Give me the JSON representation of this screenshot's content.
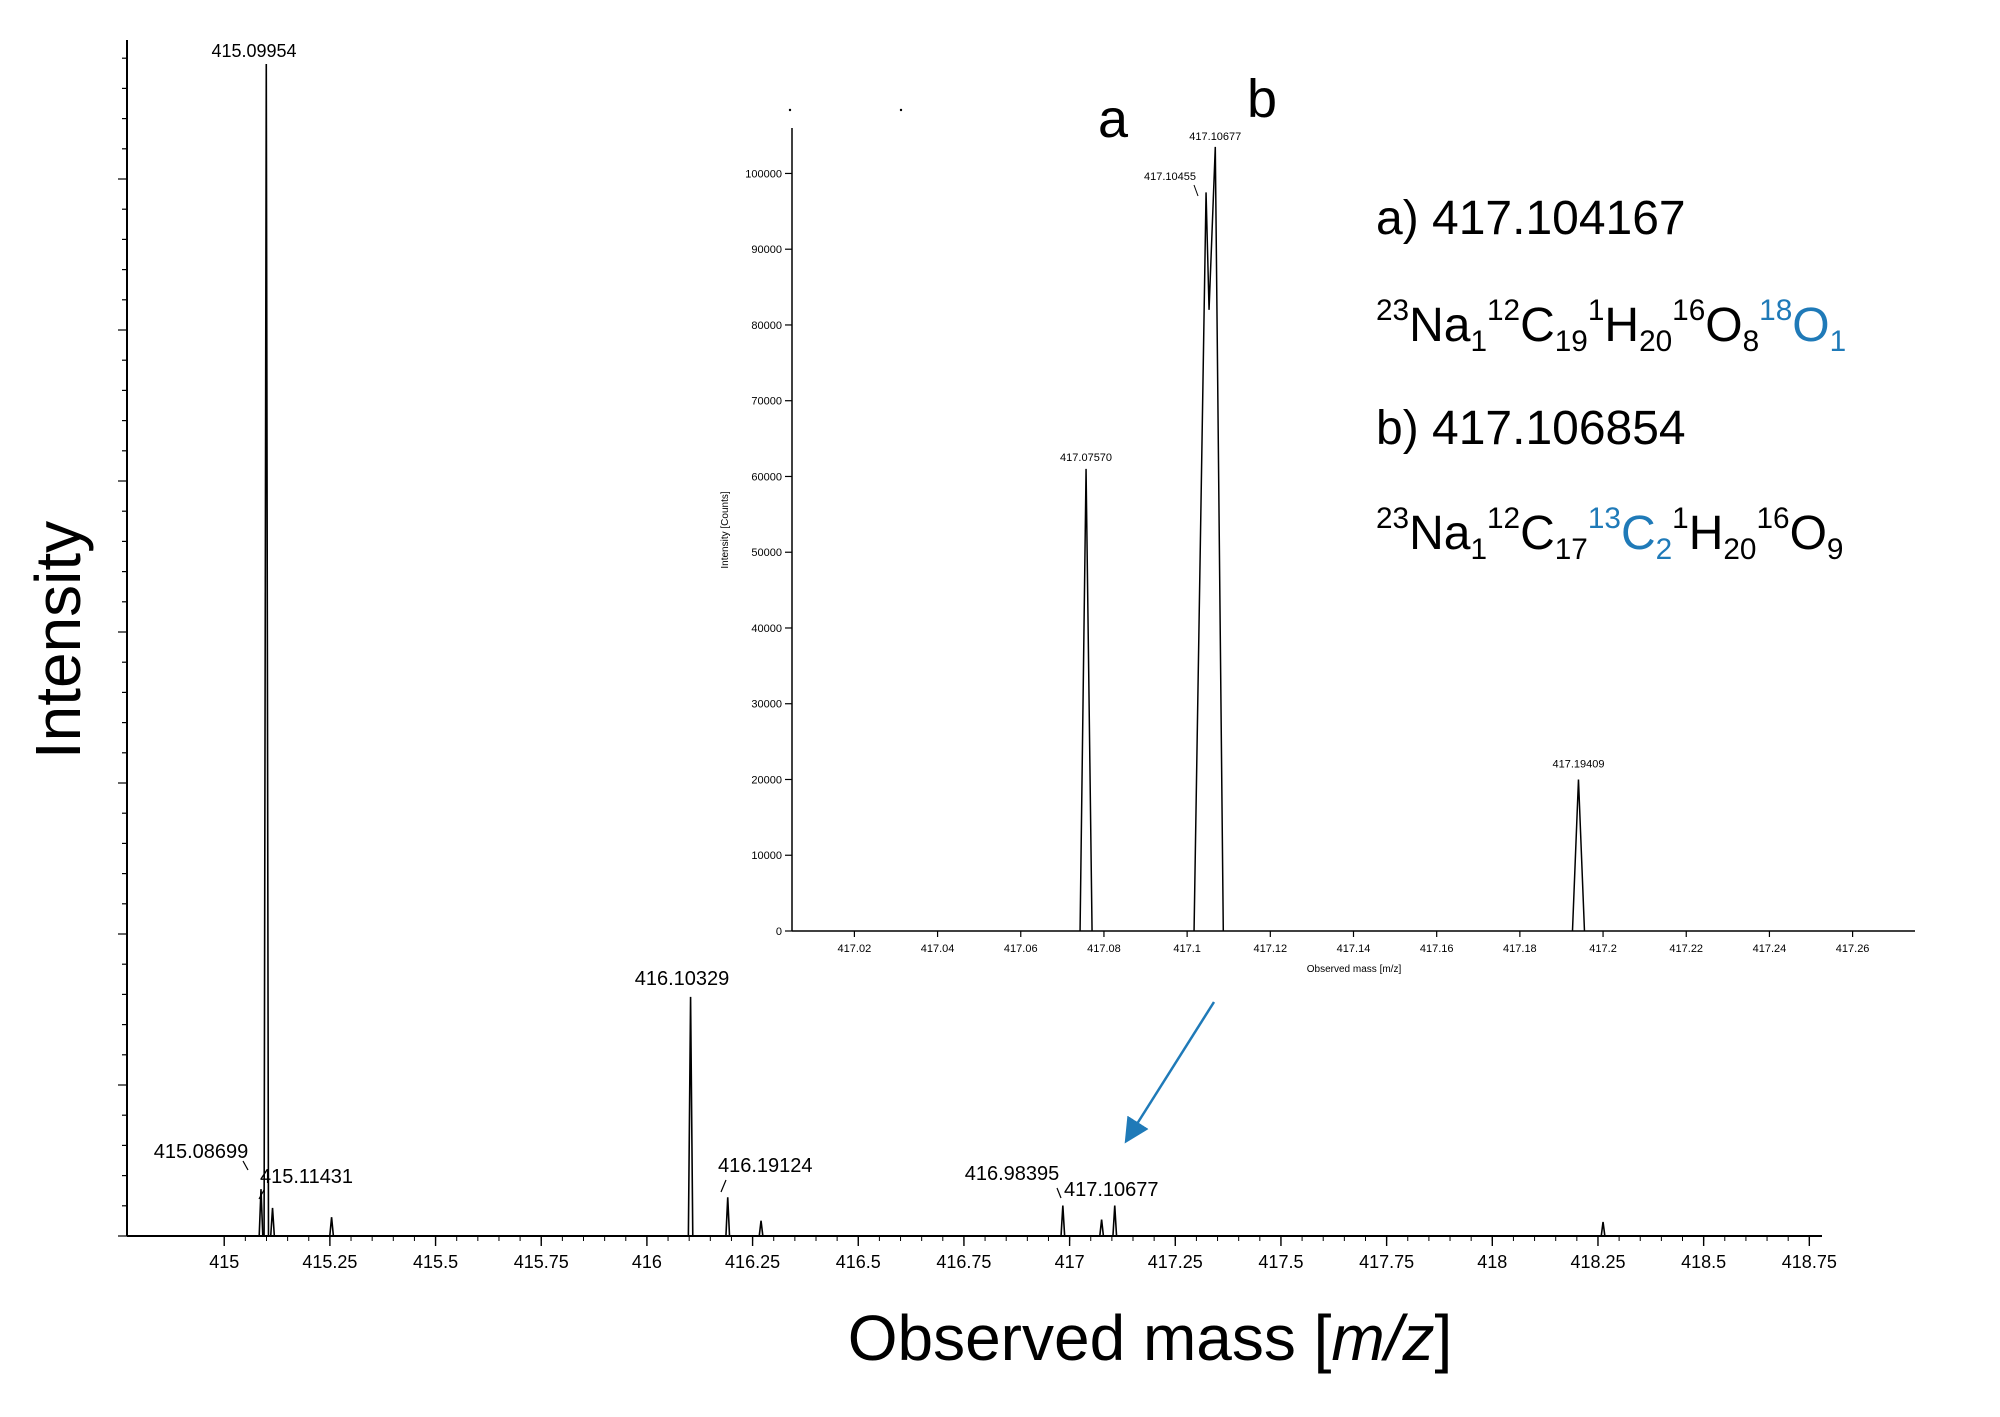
{
  "chart_data": [
    {
      "type": "line",
      "title": "",
      "xlabel_prefix": "Observed mass [",
      "xlabel_unit": "m/z",
      "xlabel_suffix": "]",
      "ylabel": "Intensity",
      "xlim": [
        414.77,
        418.78
      ],
      "ylim": [
        0,
        100
      ],
      "xticks": [
        "415",
        "415.25",
        "415.5",
        "415.75",
        "416",
        "416.25",
        "416.5",
        "416.75",
        "417",
        "417.25",
        "417.5",
        "417.75",
        "418",
        "418.25",
        "418.5",
        "418.75"
      ],
      "peaks": [
        {
          "x": 415.087,
          "y": 4.0,
          "label": "415.08699"
        },
        {
          "x": 415.0995,
          "y": 100.0,
          "label": "415.09954"
        },
        {
          "x": 415.1143,
          "y": 2.4,
          "label": "415.11431"
        },
        {
          "x": 415.254,
          "y": 1.6,
          "label": ""
        },
        {
          "x": 416.1033,
          "y": 20.4,
          "label": "416.10329"
        },
        {
          "x": 416.1912,
          "y": 3.3,
          "label": "416.19124"
        },
        {
          "x": 416.27,
          "y": 1.3,
          "label": ""
        },
        {
          "x": 416.984,
          "y": 2.6,
          "label": "416.98395"
        },
        {
          "x": 417.0757,
          "y": 1.4,
          "label": ""
        },
        {
          "x": 417.1068,
          "y": 2.6,
          "label": "417.10677"
        },
        {
          "x": 418.262,
          "y": 1.2,
          "label": ""
        }
      ]
    },
    {
      "type": "line",
      "title": "",
      "xlabel": "Observed mass [m/z]",
      "ylabel": "Intensity [Counts]",
      "xlim": [
        417.005,
        417.275
      ],
      "ylim": [
        0,
        106000
      ],
      "xticks": [
        "417.02",
        "417.04",
        "417.06",
        "417.08",
        "417.1",
        "417.12",
        "417.14",
        "417.16",
        "417.18",
        "417.2",
        "417.22",
        "417.24",
        "417.26"
      ],
      "yticks": [
        "0",
        "10000",
        "20000",
        "30000",
        "40000",
        "50000",
        "60000",
        "70000",
        "80000",
        "90000",
        "100000"
      ],
      "peaks": [
        {
          "x": 417.0757,
          "y": 61000,
          "label": "417.07570"
        },
        {
          "x": 417.10455,
          "y": 97500,
          "label": "417.10455"
        },
        {
          "x": 417.10677,
          "y": 103500,
          "label": "417.10677"
        },
        {
          "x": 417.19409,
          "y": 20000,
          "label": "417.19409"
        }
      ]
    }
  ],
  "annotations": {
    "peak_a_letter": "a",
    "peak_b_letter": "b",
    "a_mass": "a) 417.104167",
    "b_mass": "b) 417.106854",
    "a_formula": [
      {
        "mass": "23",
        "el": "Na",
        "n": "1",
        "highlight": false
      },
      {
        "mass": "12",
        "el": "C",
        "n": "19",
        "highlight": false
      },
      {
        "mass": "1",
        "el": "H",
        "n": "20",
        "highlight": false
      },
      {
        "mass": "16",
        "el": "O",
        "n": "8",
        "highlight": false
      },
      {
        "mass": "18",
        "el": "O",
        "n": "1",
        "highlight": true
      }
    ],
    "b_formula": [
      {
        "mass": "23",
        "el": "Na",
        "n": "1",
        "highlight": false
      },
      {
        "mass": "12",
        "el": "C",
        "n": "17",
        "highlight": false
      },
      {
        "mass": "13",
        "el": "C",
        "n": "2",
        "highlight": true
      },
      {
        "mass": "1",
        "el": "H",
        "n": "20",
        "highlight": false
      },
      {
        "mass": "16",
        "el": "O",
        "n": "9",
        "highlight": false
      }
    ]
  },
  "colors": {
    "highlight": "#1f7ab8",
    "arrow": "#1f7ab8",
    "line": "#000000"
  }
}
